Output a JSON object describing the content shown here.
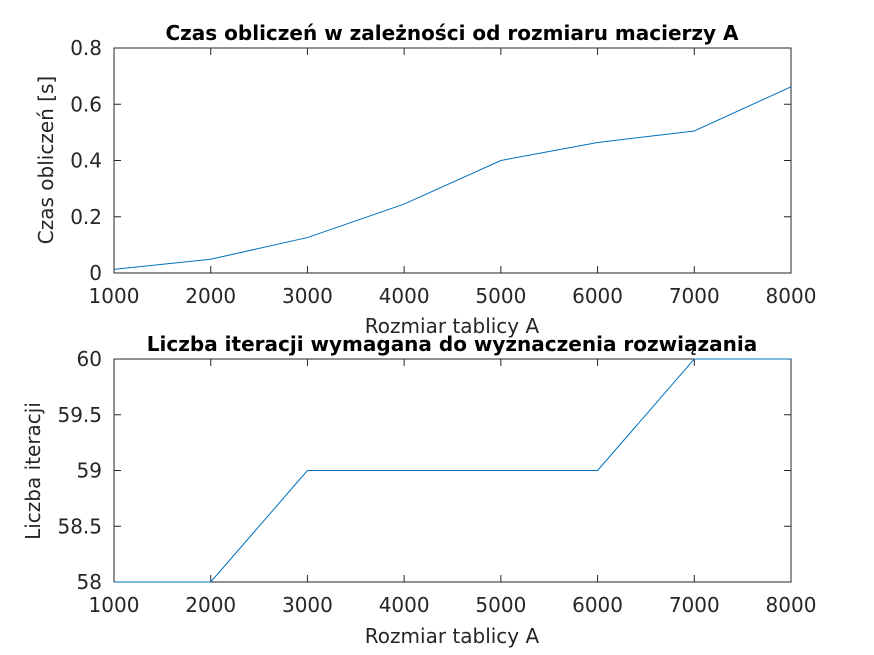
{
  "chart_data": [
    {
      "type": "line",
      "title": "Czas obliczeń w zależności od rozmiaru macierzy A",
      "xlabel": "Rozmiar tablicy A",
      "ylabel": "Czas obliczeń [s]",
      "xlim": [
        1000,
        8000
      ],
      "ylim": [
        0,
        0.8
      ],
      "xticks": [
        1000,
        2000,
        3000,
        4000,
        5000,
        6000,
        7000,
        8000
      ],
      "yticks": [
        0,
        0.2,
        0.4,
        0.6,
        0.8
      ],
      "xtick_labels": [
        "1000",
        "2000",
        "3000",
        "4000",
        "5000",
        "6000",
        "7000",
        "8000"
      ],
      "ytick_labels": [
        "0",
        "0.2",
        "0.4",
        "0.6",
        "0.8"
      ],
      "grid": false,
      "line_color": "#0072bd",
      "series": [
        {
          "x": [
            1000,
            2000,
            3000,
            4000,
            5000,
            6000,
            7000,
            8000
          ],
          "values": [
            0.013,
            0.049,
            0.126,
            0.245,
            0.4,
            0.464,
            0.505,
            0.662
          ]
        }
      ]
    },
    {
      "type": "line",
      "title": "Liczba iteracji wymagana do wyznaczenia rozwiązania",
      "xlabel": "Rozmiar tablicy A",
      "ylabel": "Liczba iteracji",
      "xlim": [
        1000,
        8000
      ],
      "ylim": [
        58,
        60
      ],
      "xticks": [
        1000,
        2000,
        3000,
        4000,
        5000,
        6000,
        7000,
        8000
      ],
      "yticks": [
        58,
        58.5,
        59,
        59.5,
        60
      ],
      "xtick_labels": [
        "1000",
        "2000",
        "3000",
        "4000",
        "5000",
        "6000",
        "7000",
        "8000"
      ],
      "ytick_labels": [
        "58",
        "58.5",
        "59",
        "59.5",
        "60"
      ],
      "grid": false,
      "line_color": "#0072bd",
      "series": [
        {
          "x": [
            1000,
            2000,
            3000,
            4000,
            5000,
            6000,
            7000,
            8000
          ],
          "values": [
            58,
            58,
            59,
            59,
            59,
            59,
            60,
            60
          ]
        }
      ]
    }
  ]
}
